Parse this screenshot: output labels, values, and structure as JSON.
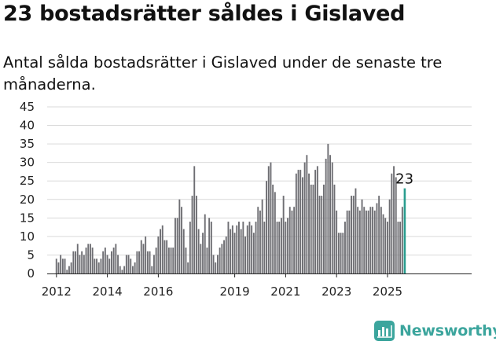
{
  "header": {
    "title": "23 bostadsrätter såldes i Gislaved",
    "subtitle": "Antal sålda bostadsrätter i Gislaved under de senaste tre månaderna."
  },
  "brand": {
    "name": "Newsworthy",
    "icon": "newsworthy-logo-icon",
    "color": "#3ca59d"
  },
  "chart_data": {
    "type": "bar",
    "start": "2011-09",
    "y_ticks": [
      "0",
      "5",
      "10",
      "15",
      "20",
      "25",
      "30",
      "35",
      "40",
      "45"
    ],
    "x_ticks": [
      {
        "label": "2012",
        "month": "2012-01"
      },
      {
        "label": "2014",
        "month": "2014-01"
      },
      {
        "label": "2016",
        "month": "2016-01"
      },
      {
        "label": "2019",
        "month": "2019-01"
      },
      {
        "label": "2021",
        "month": "2021-01"
      },
      {
        "label": "2023",
        "month": "2023-01"
      },
      {
        "label": "2025",
        "month": "2025-01"
      }
    ],
    "ylim": [
      0,
      45
    ],
    "bar_color": "#6e6e73",
    "highlight_color": "#2a9d8f",
    "annotation": "23",
    "values": [
      0,
      0,
      0,
      0,
      4,
      3,
      5,
      4,
      4,
      1,
      2,
      3,
      6,
      6,
      8,
      5,
      6,
      5,
      7,
      8,
      8,
      7,
      4,
      4,
      3,
      4,
      6,
      7,
      5,
      4,
      6,
      7,
      8,
      5,
      2,
      1,
      2,
      5,
      5,
      4,
      2,
      3,
      6,
      6,
      9,
      8,
      10,
      6,
      6,
      2,
      5,
      7,
      10,
      12,
      13,
      9,
      9,
      7,
      7,
      7,
      15,
      15,
      20,
      18,
      12,
      7,
      3,
      14,
      21,
      29,
      21,
      12,
      8,
      11,
      16,
      7,
      15,
      14,
      5,
      3,
      5,
      7,
      8,
      9,
      10,
      14,
      12,
      13,
      11,
      13,
      14,
      12,
      14,
      10,
      13,
      14,
      13,
      11,
      14,
      18,
      17,
      20,
      14,
      25,
      29,
      30,
      24,
      22,
      14,
      14,
      15,
      21,
      14,
      15,
      18,
      17,
      18,
      27,
      28,
      28,
      26,
      30,
      32,
      27,
      24,
      24,
      28,
      29,
      21,
      21,
      24,
      31,
      35,
      32,
      30,
      24,
      17,
      11,
      11,
      11,
      14,
      17,
      17,
      21,
      21,
      23,
      18,
      17,
      20,
      18,
      17,
      17,
      18,
      18,
      17,
      19,
      21,
      18,
      16,
      15,
      14,
      20,
      27,
      29,
      26,
      14,
      14,
      18,
      23
    ],
    "highlight_last": true
  }
}
